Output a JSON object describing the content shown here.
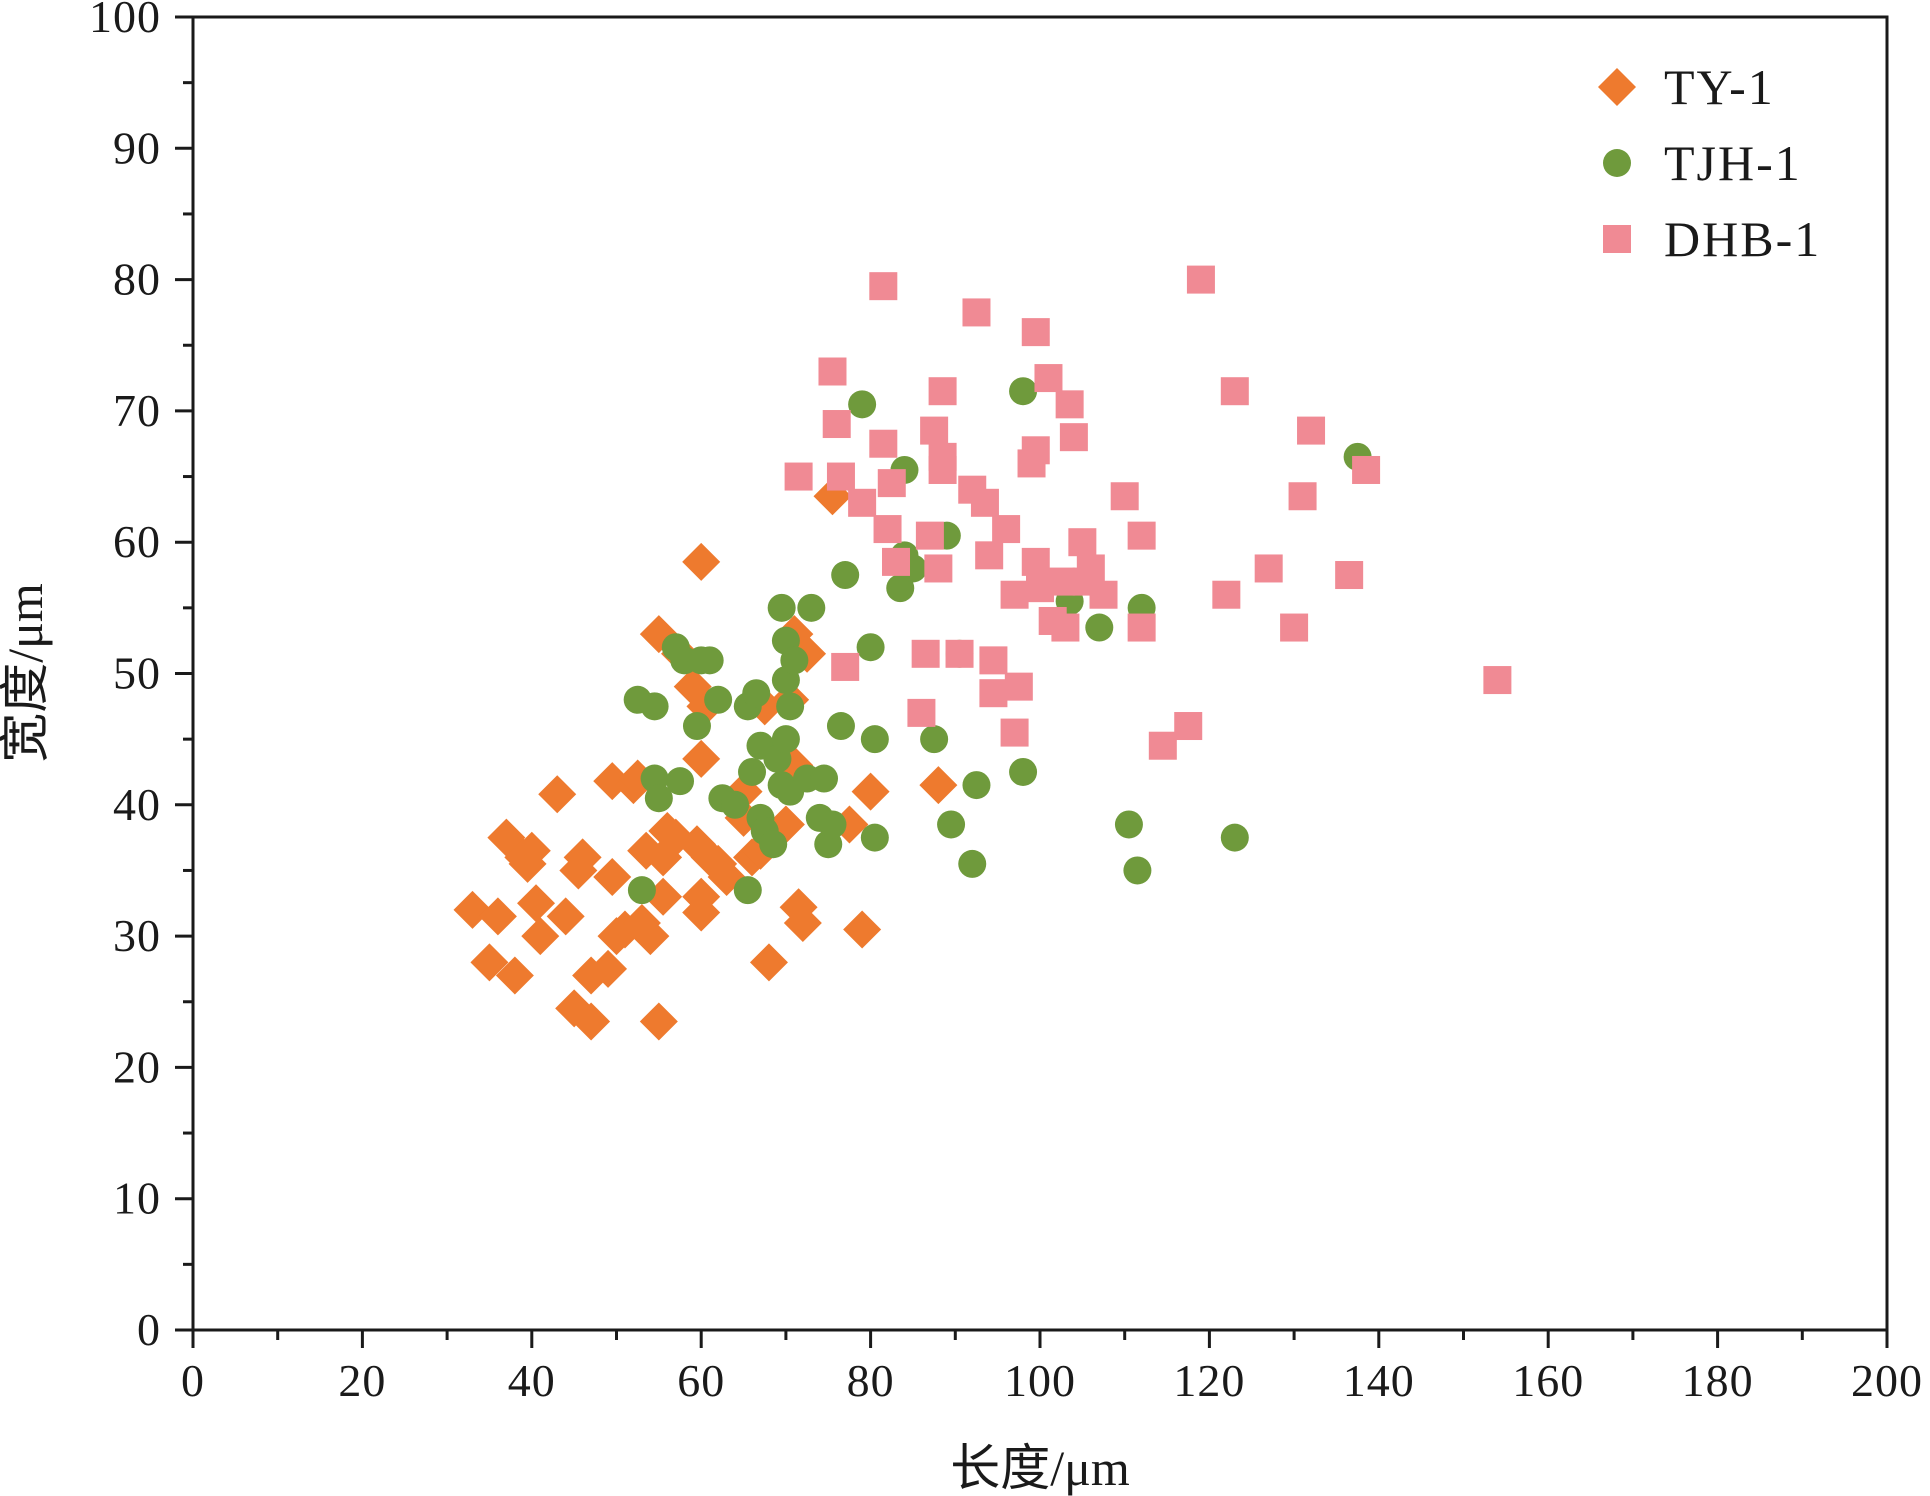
{
  "chart_data": {
    "type": "scatter",
    "xlabel": "长度/μm",
    "ylabel": "宽度/μm",
    "xlim": [
      0,
      200
    ],
    "ylim": [
      0,
      100
    ],
    "x_ticks": [
      "0",
      "20",
      "40",
      "60",
      "80",
      "100",
      "120",
      "140",
      "160",
      "180",
      "200"
    ],
    "y_ticks": [
      "0",
      "10",
      "20",
      "30",
      "40",
      "50",
      "60",
      "70",
      "80",
      "90",
      "100"
    ],
    "grid": false,
    "legend_position": "top-right",
    "series": [
      {
        "name": "TY-1",
        "marker": "diamond",
        "color": "#ee7a2e",
        "points": [
          [
            33,
            32
          ],
          [
            35,
            28
          ],
          [
            36,
            31.5
          ],
          [
            37,
            37.5
          ],
          [
            38,
            27
          ],
          [
            39,
            36
          ],
          [
            39.5,
            35.5
          ],
          [
            40,
            36.5
          ],
          [
            40.5,
            32.5
          ],
          [
            41,
            30
          ],
          [
            43,
            40.8
          ],
          [
            44,
            31.5
          ],
          [
            45,
            24.5
          ],
          [
            45.5,
            35
          ],
          [
            46,
            36
          ],
          [
            47,
            23.5
          ],
          [
            47,
            27
          ],
          [
            49,
            27.5
          ],
          [
            49.5,
            41.8
          ],
          [
            49.5,
            34.5
          ],
          [
            50,
            30
          ],
          [
            51,
            30.5
          ],
          [
            52,
            41.5
          ],
          [
            52.5,
            42
          ],
          [
            53,
            31
          ],
          [
            53.5,
            36.5
          ],
          [
            54,
            30
          ],
          [
            55,
            23.5
          ],
          [
            55,
            53
          ],
          [
            55.5,
            36
          ],
          [
            55.5,
            33
          ],
          [
            56,
            38
          ],
          [
            57,
            37.5
          ],
          [
            57.5,
            51.5
          ],
          [
            59,
            49
          ],
          [
            59.5,
            37
          ],
          [
            60,
            31.8
          ],
          [
            60,
            33
          ],
          [
            60,
            43.5
          ],
          [
            60,
            58.5
          ],
          [
            60.5,
            47.5
          ],
          [
            61,
            36
          ],
          [
            62,
            35.5
          ],
          [
            63,
            34.5
          ],
          [
            65,
            39
          ],
          [
            65,
            41
          ],
          [
            66,
            36
          ],
          [
            67,
            36.5
          ],
          [
            67.5,
            47.5
          ],
          [
            68,
            28
          ],
          [
            70,
            38.5
          ],
          [
            70.5,
            48
          ],
          [
            71,
            43
          ],
          [
            71,
            53
          ],
          [
            71.5,
            32.2
          ],
          [
            72,
            31
          ],
          [
            72.5,
            51.5
          ],
          [
            75.5,
            63.5
          ],
          [
            77.5,
            38.5
          ],
          [
            79,
            30.5
          ],
          [
            80,
            41
          ],
          [
            88,
            41.5
          ]
        ]
      },
      {
        "name": "TJH-1",
        "marker": "circle",
        "color": "#6f9a3c",
        "points": [
          [
            52.5,
            48
          ],
          [
            53,
            33.5
          ],
          [
            54.5,
            47.5
          ],
          [
            54.5,
            42
          ],
          [
            55,
            40.5
          ],
          [
            57,
            52
          ],
          [
            57.5,
            41.8
          ],
          [
            58,
            51
          ],
          [
            59.5,
            46
          ],
          [
            60,
            51
          ],
          [
            61,
            51
          ],
          [
            62,
            48
          ],
          [
            62.5,
            40.5
          ],
          [
            64,
            40
          ],
          [
            65.5,
            33.5
          ],
          [
            65.5,
            47.5
          ],
          [
            66,
            42.5
          ],
          [
            66.5,
            48.5
          ],
          [
            67,
            44.5
          ],
          [
            67,
            39
          ],
          [
            67.5,
            38
          ],
          [
            68.5,
            37
          ],
          [
            69,
            43.5
          ],
          [
            69.5,
            41.5
          ],
          [
            69.5,
            55
          ],
          [
            70,
            45
          ],
          [
            70,
            52.5
          ],
          [
            70,
            49.5
          ],
          [
            70.5,
            41
          ],
          [
            70.5,
            47.5
          ],
          [
            71,
            51
          ],
          [
            72.5,
            42
          ],
          [
            73,
            55
          ],
          [
            74,
            39
          ],
          [
            74.5,
            42
          ],
          [
            75,
            37
          ],
          [
            75.5,
            38.5
          ],
          [
            76.5,
            46
          ],
          [
            77,
            57.5
          ],
          [
            79,
            70.5
          ],
          [
            80,
            52
          ],
          [
            80.5,
            37.5
          ],
          [
            80.5,
            45
          ],
          [
            83.5,
            56.5
          ],
          [
            84,
            65.5
          ],
          [
            84,
            59
          ],
          [
            85,
            58
          ],
          [
            87.5,
            45
          ],
          [
            89,
            60.5
          ],
          [
            89.5,
            38.5
          ],
          [
            90.5,
            51.5
          ],
          [
            92,
            35.5
          ],
          [
            92.5,
            41.5
          ],
          [
            98,
            71.5
          ],
          [
            98,
            42.5
          ],
          [
            103.5,
            55.5
          ],
          [
            107,
            53.5
          ],
          [
            110.5,
            38.5
          ],
          [
            111.5,
            35
          ],
          [
            112,
            55
          ],
          [
            123,
            37.5
          ],
          [
            137.5,
            66.5
          ]
        ]
      },
      {
        "name": "DHB-1",
        "marker": "square",
        "color": "#f08a94",
        "points": [
          [
            71.5,
            65
          ],
          [
            75.5,
            73
          ],
          [
            76,
            69
          ],
          [
            76.5,
            65
          ],
          [
            77,
            50.5
          ],
          [
            79,
            63
          ],
          [
            81.5,
            79.5
          ],
          [
            81.5,
            67.5
          ],
          [
            82,
            61
          ],
          [
            82.5,
            64.5
          ],
          [
            83,
            58.5
          ],
          [
            86,
            47
          ],
          [
            86.5,
            51.5
          ],
          [
            87,
            60.5
          ],
          [
            87.5,
            68.5
          ],
          [
            88,
            58
          ],
          [
            88.5,
            71.5
          ],
          [
            88.5,
            66.5
          ],
          [
            88.5,
            65.5
          ],
          [
            90.5,
            51.5
          ],
          [
            92,
            64
          ],
          [
            92.5,
            77.5
          ],
          [
            93.5,
            63
          ],
          [
            94,
            59
          ],
          [
            94.5,
            51
          ],
          [
            94.5,
            48.5
          ],
          [
            96,
            61
          ],
          [
            97,
            45.5
          ],
          [
            97,
            56
          ],
          [
            97.5,
            49
          ],
          [
            99,
            66
          ],
          [
            99.5,
            76
          ],
          [
            99.5,
            67
          ],
          [
            99.5,
            58.5
          ],
          [
            100,
            56.5
          ],
          [
            101,
            72.5
          ],
          [
            101.5,
            54
          ],
          [
            102.5,
            57
          ],
          [
            103,
            53.5
          ],
          [
            103.5,
            70.5
          ],
          [
            104,
            68
          ],
          [
            105,
            60
          ],
          [
            105.5,
            57
          ],
          [
            106,
            58
          ],
          [
            107.5,
            56
          ],
          [
            110,
            63.5
          ],
          [
            112,
            60.5
          ],
          [
            112,
            53.5
          ],
          [
            114.5,
            44.5
          ],
          [
            117.5,
            46
          ],
          [
            119,
            80
          ],
          [
            122,
            56
          ],
          [
            123,
            71.5
          ],
          [
            127,
            58
          ],
          [
            130,
            53.5
          ],
          [
            131,
            63.5
          ],
          [
            132,
            68.5
          ],
          [
            136.5,
            57.5
          ],
          [
            138.5,
            65.5
          ],
          [
            154,
            49.5
          ]
        ]
      }
    ]
  }
}
